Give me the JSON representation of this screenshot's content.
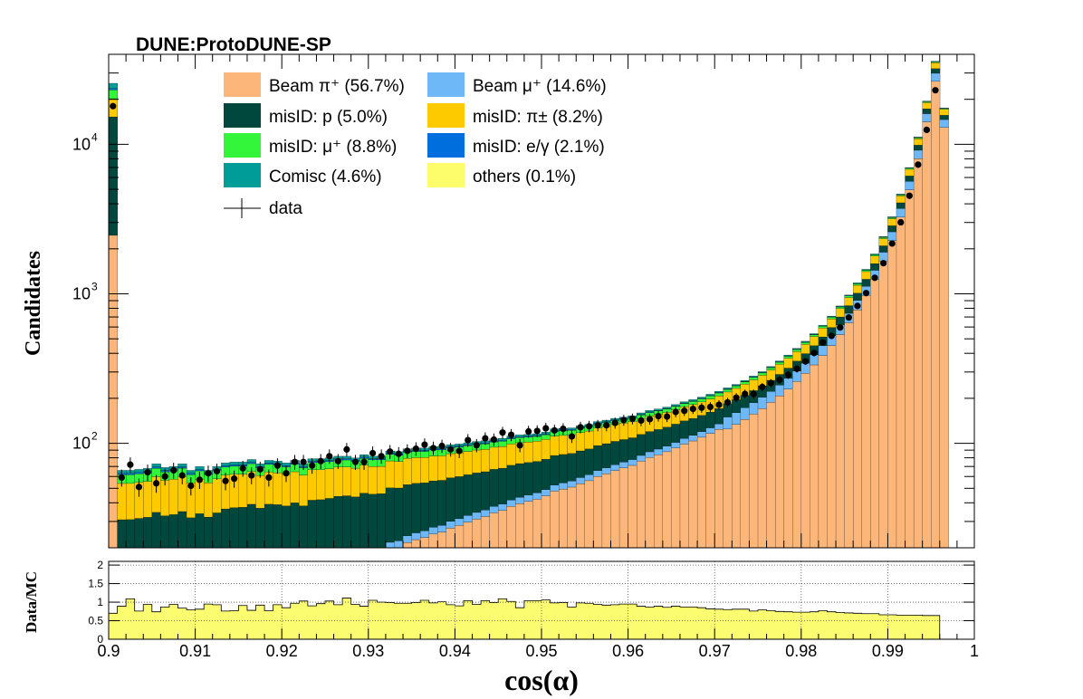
{
  "chart_data": {
    "type": "histogram-stacked",
    "title": "DUNE:ProtoDUNE-SP",
    "xlabel": "cos(α)",
    "ylabel": "Candidates",
    "ratio_ylabel": "Data/MC",
    "yscale": "log",
    "ylim": [
      20,
      40000
    ],
    "ratio_ylim": [
      0,
      2.1
    ],
    "xlim": [
      0.9,
      1.0
    ],
    "bin_width": 0.001,
    "x_ticks": [
      "0.9",
      "0.91",
      "0.92",
      "0.93",
      "0.94",
      "0.95",
      "0.96",
      "0.97",
      "0.98",
      "0.99",
      "1"
    ],
    "y_tick_labels": [
      "10",
      "10",
      "10"
    ],
    "y_tick_exponents": [
      "2",
      "3",
      "4"
    ],
    "ratio_ticks": [
      "0",
      "0.5",
      "1",
      "1.5",
      "2"
    ],
    "grid_ratio": true,
    "legend_position": "top",
    "colors": {
      "beam_pi": "#fcb679",
      "beam_mu": "#6fb8f7",
      "misid_p": "#00483e",
      "misid_pi": "#fdca00",
      "misid_mu": "#33f53a",
      "misid_e": "#006fdd",
      "cosmic": "#009c97",
      "others": "#fdfd6b",
      "ratio_fill": "#fcfc71",
      "data": "#000000"
    },
    "legend": [
      {
        "key": "beam_pi",
        "label": "Beam π⁺ (56.7%)"
      },
      {
        "key": "beam_mu",
        "label": "Beam μ⁺ (14.6%)"
      },
      {
        "key": "misid_p",
        "label": "misID: p (5.0%)"
      },
      {
        "key": "misid_pi",
        "label": "misID: π± (8.2%)"
      },
      {
        "key": "misid_mu",
        "label": "misID: μ⁺ (8.8%)"
      },
      {
        "key": "misid_e",
        "label": "misID: e/γ (2.1%)"
      },
      {
        "key": "cosmic",
        "label": "Comisc (4.6%)"
      },
      {
        "key": "others",
        "label": "others (0.1%)"
      },
      {
        "key": "data",
        "label": "data"
      }
    ],
    "series_order": [
      "beam_pi",
      "beam_mu",
      "misid_p",
      "misid_pi",
      "misid_mu",
      "misid_e",
      "cosmic",
      "others"
    ],
    "x_bin_lows": [
      0.9,
      0.901,
      0.902,
      0.903,
      0.904,
      0.905,
      0.906,
      0.907,
      0.908,
      0.909,
      0.91,
      0.911,
      0.912,
      0.913,
      0.914,
      0.915,
      0.916,
      0.917,
      0.918,
      0.919,
      0.92,
      0.921,
      0.922,
      0.923,
      0.924,
      0.925,
      0.926,
      0.927,
      0.928,
      0.929,
      0.93,
      0.931,
      0.932,
      0.933,
      0.934,
      0.935,
      0.936,
      0.937,
      0.938,
      0.939,
      0.94,
      0.941,
      0.942,
      0.943,
      0.944,
      0.945,
      0.946,
      0.947,
      0.948,
      0.949,
      0.95,
      0.951,
      0.952,
      0.953,
      0.954,
      0.955,
      0.956,
      0.957,
      0.958,
      0.959,
      0.96,
      0.961,
      0.962,
      0.963,
      0.964,
      0.965,
      0.966,
      0.967,
      0.968,
      0.969,
      0.97,
      0.971,
      0.972,
      0.973,
      0.974,
      0.975,
      0.976,
      0.977,
      0.978,
      0.979,
      0.98,
      0.981,
      0.982,
      0.983,
      0.984,
      0.985,
      0.986,
      0.987,
      0.988,
      0.989,
      0.99,
      0.991,
      0.992,
      0.993,
      0.994,
      0.995,
      0.996,
      0.997,
      0.998,
      0.999
    ],
    "total_mc": [
      25600,
      66,
      66,
      67,
      68,
      73,
      69,
      70,
      73,
      66,
      70,
      66,
      70,
      74,
      75,
      75,
      78,
      73,
      77,
      76,
      74,
      77,
      73,
      79,
      79,
      80,
      82,
      82,
      80,
      84,
      82,
      82,
      89,
      88,
      92,
      93,
      93,
      95,
      95,
      98,
      99,
      101,
      103,
      104,
      107,
      108,
      112,
      114,
      115,
      116,
      119,
      125,
      126,
      127,
      131,
      134,
      140,
      143,
      147,
      150,
      153,
      160,
      166,
      170,
      175,
      182,
      190,
      196,
      204,
      213,
      223,
      235,
      248,
      264,
      282,
      302,
      327,
      356,
      390,
      432,
      482,
      542,
      617,
      710,
      830,
      983,
      1185,
      1460,
      1850,
      2420,
      3280,
      4650,
      7000,
      11200,
      19500,
      36000,
      17500,
      0,
      0,
      0
    ],
    "data": [
      18000,
      59,
      72,
      51,
      64,
      54,
      60,
      66,
      61,
      52,
      57,
      63,
      65,
      56,
      58,
      68,
      61,
      67,
      59,
      71,
      63,
      75,
      75,
      71,
      76,
      82,
      76,
      91,
      75,
      75,
      86,
      82,
      88,
      85,
      89,
      92,
      98,
      93,
      96,
      91,
      89,
      105,
      97,
      108,
      106,
      118,
      114,
      97,
      120,
      121,
      126,
      122,
      125,
      111,
      128,
      130,
      132,
      132,
      137,
      143,
      146,
      142,
      145,
      152,
      151,
      162,
      165,
      170,
      173,
      175,
      181,
      188,
      202,
      214,
      214,
      238,
      253,
      266,
      287,
      315,
      353,
      402,
      473,
      523,
      595,
      694,
      830,
      1011,
      1280,
      1603,
      2170,
      3008,
      4527,
      7313,
      12500,
      23000,
      0,
      0,
      0,
      0
    ],
    "ratio": [
      0.7,
      0.89,
      1.09,
      0.76,
      0.94,
      0.74,
      0.87,
      0.94,
      0.84,
      0.79,
      0.81,
      0.95,
      0.93,
      0.76,
      0.77,
      0.91,
      0.78,
      0.92,
      0.77,
      0.93,
      0.85,
      0.97,
      1.03,
      0.9,
      0.96,
      1.03,
      0.93,
      1.11,
      0.94,
      0.89,
      1.05,
      1.0,
      0.99,
      0.97,
      0.97,
      0.99,
      1.05,
      0.98,
      1.01,
      0.93,
      0.9,
      1.04,
      0.94,
      1.04,
      0.99,
      1.09,
      1.02,
      0.85,
      1.04,
      1.04,
      1.06,
      0.98,
      0.99,
      0.87,
      0.98,
      0.97,
      0.94,
      0.92,
      0.93,
      0.95,
      0.95,
      0.89,
      0.87,
      0.89,
      0.86,
      0.89,
      0.87,
      0.87,
      0.85,
      0.82,
      0.81,
      0.8,
      0.81,
      0.81,
      0.76,
      0.79,
      0.77,
      0.75,
      0.74,
      0.73,
      0.73,
      0.74,
      0.77,
      0.74,
      0.72,
      0.71,
      0.7,
      0.69,
      0.69,
      0.66,
      0.66,
      0.65,
      0.65,
      0.65,
      0.64,
      0.64,
      0,
      0,
      0,
      0
    ]
  }
}
